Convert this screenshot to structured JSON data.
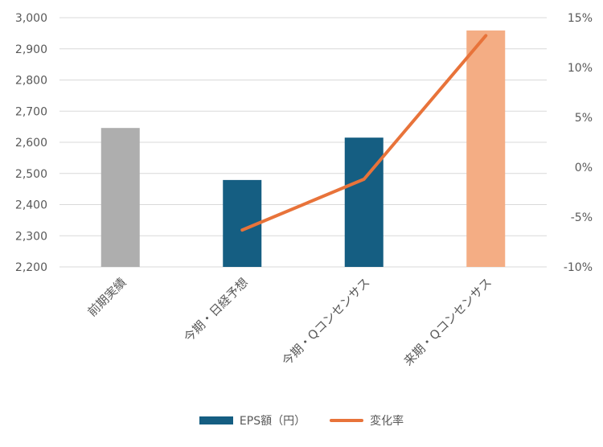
{
  "chart_data": {
    "type": "bar",
    "categories": [
      "前期実績",
      "今期・日経予想",
      "今期・Qコンセンサス",
      "来期・Qコンセンサス"
    ],
    "series": [
      {
        "name": "EPS額（円）",
        "type": "bar",
        "axis": "left",
        "values": [
          2646,
          2479,
          2615,
          2959
        ],
        "colors": [
          "#aeaeae",
          "#155e82",
          "#155e82",
          "#f4ad84"
        ]
      },
      {
        "name": "変化率",
        "type": "line",
        "axis": "right",
        "values": [
          null,
          -6.3,
          -1.2,
          13.2
        ],
        "color": "#e8733a"
      }
    ],
    "ylim": [
      2200,
      3000
    ],
    "yticks": [
      "2,200",
      "2,300",
      "2,400",
      "2,500",
      "2,600",
      "2,700",
      "2,800",
      "2,900",
      "3,000"
    ],
    "y2lim": [
      -10,
      15
    ],
    "y2ticks": [
      "-10%",
      "-5%",
      "0%",
      "5%",
      "10%",
      "15%"
    ],
    "grid": true,
    "legend": "bottom"
  }
}
